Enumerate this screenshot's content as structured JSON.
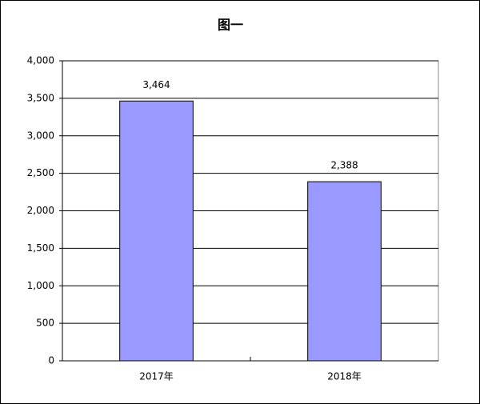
{
  "chart_data": {
    "type": "bar",
    "title": "图一",
    "categories": [
      "2017年",
      "2018年"
    ],
    "values": [
      3464,
      2388
    ],
    "value_labels": [
      "3,464",
      "2,388"
    ],
    "color": "#9999ff",
    "ylim": [
      0,
      4000
    ],
    "yticks": [
      0,
      500,
      {
        "value": 1000,
        "label": "1,000"
      },
      {
        "value": 1500,
        "label": "1,500"
      },
      {
        "value": 2000,
        "label": "2,000"
      },
      {
        "value": 2500,
        "label": "2,500"
      },
      {
        "value": 3000,
        "label": "3,000"
      },
      {
        "value": 3500,
        "label": "3,500"
      },
      {
        "value": 4000,
        "label": "4,000"
      }
    ],
    "grid": true
  }
}
